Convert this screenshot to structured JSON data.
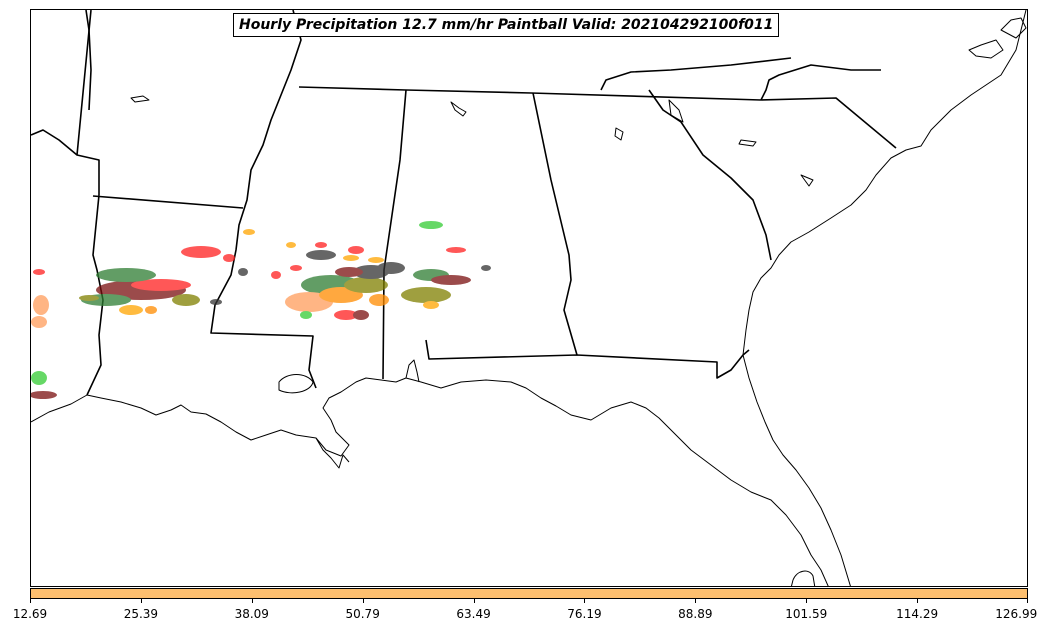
{
  "title": "Hourly Precipitation 12.7 mm/hr Paintball Valid: 202104292100f011",
  "colorbar": {
    "color": "#fdbf6f",
    "min": 12.69,
    "max": 126.99,
    "tick_labels": [
      "12.69",
      "25.39",
      "38.09",
      "50.79",
      "63.49",
      "76.19",
      "88.89",
      "101.59",
      "114.29",
      "126.99"
    ]
  },
  "paint_colors": [
    "#ff2020",
    "#ff8c00",
    "#ff9d5c",
    "#7a0f0f",
    "#2e7d32",
    "#33cc33",
    "#808000",
    "#333333",
    "#ffa500"
  ]
}
